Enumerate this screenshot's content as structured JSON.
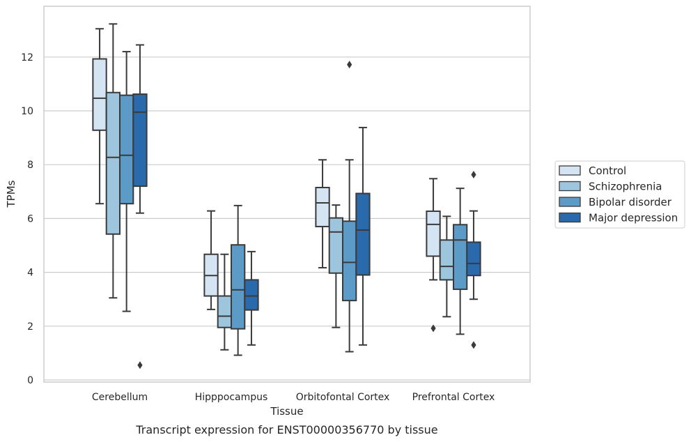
{
  "caption": "Transcript expression for ENST00000356770 by tissue",
  "chart_data": {
    "type": "boxplot",
    "title": "",
    "xlabel": "Tissue",
    "ylabel": "TPMs",
    "ylim": [
      0,
      13.9
    ],
    "yticks": [
      0,
      2,
      4,
      6,
      8,
      10,
      12
    ],
    "grid": "horizontal",
    "legend_position": "right",
    "categories": [
      "Cerebellum",
      "Hipppocampus",
      "Orbitofontal Cortex",
      "Prefrontal Cortex"
    ],
    "series": [
      {
        "name": "Control",
        "color": "#d4e4f2",
        "boxes": [
          {
            "whisker_low": 6.55,
            "q1": 9.28,
            "median": 10.47,
            "q3": 11.93,
            "whisker_high": 13.05,
            "outliers": []
          },
          {
            "whisker_low": 2.62,
            "q1": 3.12,
            "median": 3.88,
            "q3": 4.67,
            "whisker_high": 6.28,
            "outliers": []
          },
          {
            "whisker_low": 4.17,
            "q1": 5.7,
            "median": 6.58,
            "q3": 7.15,
            "whisker_high": 8.18,
            "outliers": []
          },
          {
            "whisker_low": 3.72,
            "q1": 4.6,
            "median": 5.78,
            "q3": 6.27,
            "whisker_high": 7.48,
            "outliers": [
              1.92
            ]
          }
        ]
      },
      {
        "name": "Schizophrenia",
        "color": "#9ec5de",
        "boxes": [
          {
            "whisker_low": 3.05,
            "q1": 5.42,
            "median": 8.27,
            "q3": 10.68,
            "whisker_high": 13.23,
            "outliers": []
          },
          {
            "whisker_low": 1.12,
            "q1": 1.95,
            "median": 2.37,
            "q3": 3.12,
            "whisker_high": 4.67,
            "outliers": []
          },
          {
            "whisker_low": 1.95,
            "q1": 3.97,
            "median": 5.5,
            "q3": 6.02,
            "whisker_high": 6.5,
            "outliers": []
          },
          {
            "whisker_low": 2.35,
            "q1": 3.72,
            "median": 4.22,
            "q3": 5.2,
            "whisker_high": 6.08,
            "outliers": []
          }
        ]
      },
      {
        "name": "Bipolar disorder",
        "color": "#5c9bc8",
        "boxes": [
          {
            "whisker_low": 2.55,
            "q1": 6.55,
            "median": 8.35,
            "q3": 10.58,
            "whisker_high": 12.2,
            "outliers": []
          },
          {
            "whisker_low": 0.92,
            "q1": 1.9,
            "median": 3.35,
            "q3": 5.02,
            "whisker_high": 6.48,
            "outliers": []
          },
          {
            "whisker_low": 1.05,
            "q1": 2.95,
            "median": 4.37,
            "q3": 5.9,
            "whisker_high": 8.18,
            "outliers": [
              11.72
            ]
          },
          {
            "whisker_low": 1.7,
            "q1": 3.37,
            "median": 5.2,
            "q3": 5.77,
            "whisker_high": 7.12,
            "outliers": []
          }
        ]
      },
      {
        "name": "Major depression",
        "color": "#2a6aac",
        "boxes": [
          {
            "whisker_low": 6.2,
            "q1": 7.2,
            "median": 9.95,
            "q3": 10.62,
            "whisker_high": 12.45,
            "outliers": [
              0.55
            ]
          },
          {
            "whisker_low": 1.3,
            "q1": 2.6,
            "median": 3.12,
            "q3": 3.72,
            "whisker_high": 4.77,
            "outliers": []
          },
          {
            "whisker_low": 1.3,
            "q1": 3.9,
            "median": 5.57,
            "q3": 6.93,
            "whisker_high": 9.38,
            "outliers": []
          },
          {
            "whisker_low": 3.0,
            "q1": 3.88,
            "median": 4.33,
            "q3": 5.12,
            "whisker_high": 6.28,
            "outliers": [
              1.3,
              7.63
            ]
          }
        ]
      }
    ]
  }
}
